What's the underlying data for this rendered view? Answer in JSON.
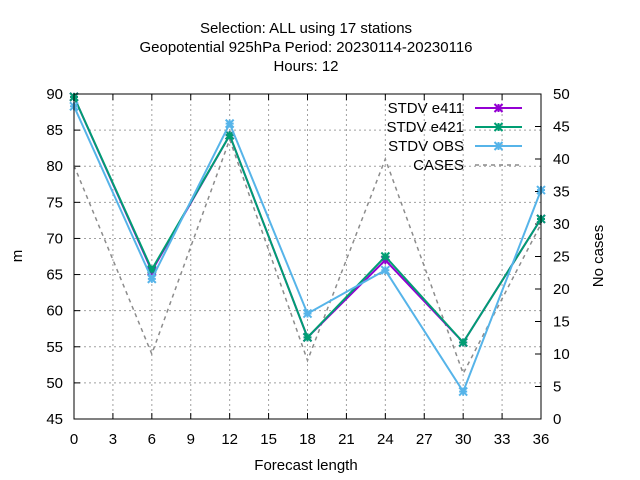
{
  "chart_data": {
    "type": "line",
    "title_lines": [
      "Selection: ALL using    17 stations",
      "Geopotential 925hPa   Period: 20230114-20230116",
      "Hours:  12"
    ],
    "xlabel": "Forecast length",
    "ylabel": "m",
    "y2label": "No cases",
    "x": [
      0,
      6,
      12,
      18,
      24,
      30,
      36
    ],
    "xticks": [
      0,
      3,
      6,
      9,
      12,
      15,
      18,
      21,
      24,
      27,
      30,
      33,
      36
    ],
    "xlim": [
      0,
      36
    ],
    "yticks": [
      45,
      50,
      55,
      60,
      65,
      70,
      75,
      80,
      85,
      90
    ],
    "ylim": [
      45,
      90
    ],
    "y2ticks": [
      0,
      5,
      10,
      15,
      20,
      25,
      30,
      35,
      40,
      45,
      50
    ],
    "y2lim": [
      0,
      50
    ],
    "grid": true,
    "legend_position": "top-right",
    "series": [
      {
        "name": "STDV e411",
        "axis": "y",
        "color": "#9400d3",
        "marker": "x-star",
        "dashed": false,
        "values": [
          89.6,
          65.5,
          84.3,
          56.3,
          67.0,
          55.6,
          72.7
        ]
      },
      {
        "name": "STDV e421",
        "axis": "y",
        "color": "#009e73",
        "marker": "x-star",
        "dashed": false,
        "values": [
          89.6,
          65.7,
          84.3,
          56.3,
          67.5,
          55.6,
          72.7
        ]
      },
      {
        "name": "STDV OBS",
        "axis": "y",
        "color": "#56b4e9",
        "marker": "x-star",
        "dashed": false,
        "values": [
          88.3,
          64.4,
          85.9,
          59.6,
          65.6,
          48.8,
          76.7
        ]
      },
      {
        "name": "CASES",
        "axis": "y2",
        "color": "#8c8c8c",
        "marker": "none",
        "dashed": true,
        "values": [
          39,
          10,
          43,
          9,
          40,
          7,
          30
        ]
      }
    ]
  }
}
